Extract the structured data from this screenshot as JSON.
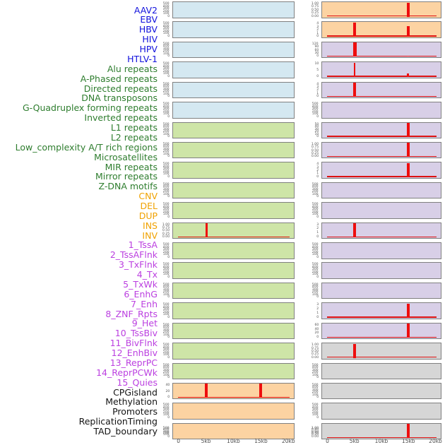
{
  "chart_data": {
    "type": "line",
    "title": "",
    "description": "Genomic feature signal tracks in two columns of 22 panels; red signal spikes near 5kb and 15kb",
    "x_axis": {
      "tick_labels": [
        "0",
        "5kb",
        "10kb",
        "15kb",
        "20kb"
      ],
      "ticks_kb": [
        0,
        5,
        10,
        15,
        20
      ],
      "range_kb": [
        0,
        20
      ]
    },
    "legend_position": "none",
    "grid": false,
    "colors": {
      "track_border": "#808080",
      "spike_red": "#ee0e0e",
      "baseline_red": "#dd1111",
      "axis_text": "#4d4d4d",
      "ytick_text": "#555555"
    },
    "groups": {
      "virus": {
        "label_color": "#1212dd",
        "fill": "#d4e8f1"
      },
      "repeats": {
        "label_color": "#2e7d2e",
        "fill": "#cee5a7"
      },
      "sv": {
        "label_color": "#f0a202",
        "fill": "#fcd3a2"
      },
      "chromatin": {
        "label_color": "#bb3fe0",
        "fill": "#d8cfe7"
      },
      "other": {
        "label_color": "#141414",
        "fill": "#d6d6d6"
      }
    },
    "default_y_ticks": [
      "500",
      "400",
      "300",
      "200",
      "100",
      "0"
    ],
    "tracks": [
      {
        "label": "AAV2",
        "group": "virus",
        "column": "left",
        "y_ticks": [
          "500",
          "400",
          "300",
          "200",
          "100",
          "0"
        ],
        "spikes": [],
        "baseline": false
      },
      {
        "label": "EBV",
        "group": "virus",
        "column": "left",
        "y_ticks": [
          "500",
          "400",
          "300",
          "200",
          "100",
          "0"
        ],
        "spikes": [],
        "baseline": false
      },
      {
        "label": "HBV",
        "group": "virus",
        "column": "left",
        "y_ticks": [
          "500",
          "400",
          "300",
          "200",
          "100",
          "0"
        ],
        "spikes": [],
        "baseline": false
      },
      {
        "label": "HIV",
        "group": "virus",
        "column": "left",
        "y_ticks": [
          "500",
          "400",
          "300",
          "200",
          "100",
          "0"
        ],
        "spikes": [],
        "baseline": false
      },
      {
        "label": "HPV",
        "group": "virus",
        "column": "left",
        "y_ticks": [
          "500",
          "400",
          "300",
          "200",
          "100",
          "0"
        ],
        "spikes": [],
        "baseline": false
      },
      {
        "label": "HTLV-1",
        "group": "virus",
        "column": "left",
        "y_ticks": [
          "500",
          "400",
          "300",
          "200",
          "100",
          "0"
        ],
        "spikes": [],
        "baseline": false
      },
      {
        "label": "Alu repeats",
        "group": "repeats",
        "column": "left",
        "y_ticks": [
          "500",
          "400",
          "300",
          "200",
          "100",
          "0"
        ],
        "spikes": [],
        "baseline": false
      },
      {
        "label": "A-Phased repeats",
        "group": "repeats",
        "column": "left",
        "y_ticks": [
          "500",
          "400",
          "300",
          "200",
          "100",
          "0"
        ],
        "spikes": [],
        "baseline": false
      },
      {
        "label": "Directed repeats",
        "group": "repeats",
        "column": "left",
        "y_ticks": [
          "500",
          "400",
          "300",
          "200",
          "100",
          "0"
        ],
        "spikes": [],
        "baseline": false
      },
      {
        "label": "DNA transposons",
        "group": "repeats",
        "column": "left",
        "y_ticks": [
          "500",
          "400",
          "300",
          "200",
          "100",
          "0"
        ],
        "spikes": [],
        "baseline": false
      },
      {
        "label": "G-Quadruplex forming repeats",
        "group": "repeats",
        "column": "left",
        "y_ticks": [
          "500",
          "400",
          "300",
          "200",
          "100",
          "0"
        ],
        "spikes": [],
        "baseline": false
      },
      {
        "label": "Inverted repeats",
        "group": "repeats",
        "column": "left",
        "y_ticks": [
          "1.00",
          "0.75",
          "0.50",
          "0.25",
          "0.00"
        ],
        "spikes": [
          {
            "kb": 5,
            "h": 1.0,
            "w": 3
          }
        ],
        "baseline": true
      },
      {
        "label": "L1 repeats",
        "group": "repeats",
        "column": "left",
        "y_ticks": [
          "500",
          "400",
          "300",
          "200",
          "100",
          "0"
        ],
        "spikes": [],
        "baseline": false
      },
      {
        "label": "L2 repeats",
        "group": "repeats",
        "column": "left",
        "y_ticks": [
          "500",
          "400",
          "300",
          "200",
          "100",
          "0"
        ],
        "spikes": [],
        "baseline": false
      },
      {
        "label": "Low_complexity A/T rich regions",
        "group": "repeats",
        "column": "left",
        "y_ticks": [
          "500",
          "400",
          "300",
          "200",
          "100",
          "0"
        ],
        "spikes": [],
        "baseline": false
      },
      {
        "label": "Microsatellites",
        "group": "repeats",
        "column": "left",
        "y_ticks": [
          "500",
          "400",
          "300",
          "200",
          "100",
          "0"
        ],
        "spikes": [],
        "baseline": false
      },
      {
        "label": "MIR repeats",
        "group": "repeats",
        "column": "left",
        "y_ticks": [
          "500",
          "400",
          "300",
          "200",
          "100",
          "0"
        ],
        "spikes": [],
        "baseline": false
      },
      {
        "label": "Mirror repeats",
        "group": "repeats",
        "column": "left",
        "y_ticks": [
          "500",
          "400",
          "300",
          "200",
          "100",
          "0"
        ],
        "spikes": [],
        "baseline": false
      },
      {
        "label": "Z-DNA motifs",
        "group": "repeats",
        "column": "left",
        "y_ticks": [
          "500",
          "400",
          "300",
          "200",
          "100",
          "0"
        ],
        "spikes": [],
        "baseline": false
      },
      {
        "label": "CNV",
        "group": "sv",
        "column": "left",
        "y_ticks": [
          "40",
          "20",
          "0"
        ],
        "spikes": [
          {
            "kb": 5,
            "h": 1.0,
            "w": 4
          },
          {
            "kb": 15,
            "h": 1.0,
            "w": 4
          }
        ],
        "baseline": true
      },
      {
        "label": "DEL",
        "group": "sv",
        "column": "left",
        "y_ticks": [
          "500",
          "400",
          "300",
          "200",
          "100",
          "0"
        ],
        "spikes": [],
        "baseline": false
      },
      {
        "label": "DUP",
        "group": "sv",
        "column": "left",
        "y_ticks": [
          "500",
          "400",
          "300",
          "200",
          "100",
          "0"
        ],
        "dense_ticks": true,
        "spikes": [],
        "baseline": false
      },
      {
        "label": "INS",
        "group": "sv",
        "column": "right",
        "y_ticks": [
          "1.00",
          "0.75",
          "0.50",
          "0.25",
          "0.00"
        ],
        "spikes": [
          {
            "kb": 15,
            "h": 1.0,
            "w": 4
          }
        ],
        "baseline": true
      },
      {
        "label": "INV",
        "group": "sv",
        "column": "right",
        "y_ticks": [
          "4",
          "3",
          "2",
          "1",
          "0"
        ],
        "spikes": [
          {
            "kb": 5,
            "h": 1.0,
            "w": 4
          },
          {
            "kb": 15,
            "h": 0.75,
            "w": 4
          }
        ],
        "baseline": true
      },
      {
        "label": "1_TssA",
        "group": "chromatin",
        "column": "right",
        "y_ticks": [
          "120",
          "90",
          "60",
          "30",
          "0"
        ],
        "spikes": [
          {
            "kb": 5,
            "h": 1.0,
            "w": 5
          },
          {
            "kb": 15,
            "h": 0.08,
            "w": 3
          }
        ],
        "baseline": true
      },
      {
        "label": "2_TssAFlnk",
        "group": "chromatin",
        "column": "right",
        "y_ticks": [
          "10",
          "5",
          "0"
        ],
        "spikes": [
          {
            "kb": 5,
            "h": 1.0,
            "w": 2
          },
          {
            "kb": 15,
            "h": 0.22,
            "w": 3
          }
        ],
        "baseline": true
      },
      {
        "label": "3_TxFlnk",
        "group": "chromatin",
        "column": "right",
        "y_ticks": [
          "4",
          "3",
          "2",
          "1",
          "0"
        ],
        "spikes": [
          {
            "kb": 5,
            "h": 1.0,
            "w": 4
          }
        ],
        "baseline": true
      },
      {
        "label": "4_Tx",
        "group": "chromatin",
        "column": "right",
        "y_ticks": [
          "500",
          "400",
          "300",
          "200",
          "100",
          "0"
        ],
        "spikes": [],
        "baseline": false
      },
      {
        "label": "5_TxWk",
        "group": "chromatin",
        "column": "right",
        "y_ticks": [
          "50",
          "40",
          "30",
          "20",
          "10",
          "0"
        ],
        "spikes": [
          {
            "kb": 15,
            "h": 1.0,
            "w": 4
          }
        ],
        "baseline": true
      },
      {
        "label": "6_EnhG",
        "group": "chromatin",
        "column": "right",
        "y_ticks": [
          "1.00",
          "0.75",
          "0.50",
          "0.25",
          "0.00"
        ],
        "spikes": [
          {
            "kb": 15,
            "h": 1.0,
            "w": 4
          }
        ],
        "baseline": true
      },
      {
        "label": "7_Enh",
        "group": "chromatin",
        "column": "right",
        "y_ticks": [
          "4",
          "3",
          "2",
          "1",
          "0"
        ],
        "spikes": [
          {
            "kb": 15,
            "h": 1.0,
            "w": 4
          }
        ],
        "baseline": true
      },
      {
        "label": "8_ZNF_Rpts",
        "group": "chromatin",
        "column": "right",
        "y_ticks": [
          "500",
          "400",
          "300",
          "200",
          "100",
          "0"
        ],
        "spikes": [],
        "baseline": false
      },
      {
        "label": "9_Het",
        "group": "chromatin",
        "column": "right",
        "y_ticks": [
          "500",
          "400",
          "300",
          "200",
          "100",
          "0"
        ],
        "spikes": [],
        "baseline": false
      },
      {
        "label": "10_TssBiv",
        "group": "chromatin",
        "column": "right",
        "y_ticks": [
          "3",
          "2",
          "1",
          "0"
        ],
        "spikes": [
          {
            "kb": 5,
            "h": 1.0,
            "w": 4
          }
        ],
        "baseline": true
      },
      {
        "label": "11_BivFlnk",
        "group": "chromatin",
        "column": "right",
        "y_ticks": [
          "500",
          "400",
          "300",
          "200",
          "100",
          "0"
        ],
        "spikes": [],
        "baseline": false
      },
      {
        "label": "12_EnhBiv",
        "group": "chromatin",
        "column": "right",
        "y_ticks": [
          "500",
          "400",
          "300",
          "200",
          "100",
          "0"
        ],
        "spikes": [],
        "baseline": false
      },
      {
        "label": "13_ReprPC",
        "group": "chromatin",
        "column": "right",
        "y_ticks": [
          "500",
          "400",
          "300",
          "200",
          "100",
          "0"
        ],
        "spikes": [],
        "baseline": false
      },
      {
        "label": "14_ReprPCWk",
        "group": "chromatin",
        "column": "right",
        "y_ticks": [
          "3",
          "2",
          "1",
          "0"
        ],
        "spikes": [
          {
            "kb": 15,
            "h": 1.0,
            "w": 4
          }
        ],
        "baseline": true
      },
      {
        "label": "15_Quies",
        "group": "chromatin",
        "column": "right",
        "y_ticks": [
          "60",
          "40",
          "20",
          "0"
        ],
        "spikes": [
          {
            "kb": 15,
            "h": 1.0,
            "w": 4
          }
        ],
        "baseline": true
      },
      {
        "label": "CPGisland",
        "group": "other",
        "column": "right",
        "y_ticks": [
          "1.00",
          "0.75",
          "0.50",
          "0.25",
          "0.00"
        ],
        "spikes": [
          {
            "kb": 5,
            "h": 1.0,
            "w": 4
          }
        ],
        "baseline": true
      },
      {
        "label": "Methylation",
        "group": "other",
        "column": "right",
        "y_ticks": [
          "500",
          "400",
          "300",
          "200",
          "100",
          "0"
        ],
        "spikes": [],
        "baseline": false
      },
      {
        "label": "Promoters",
        "group": "other",
        "column": "right",
        "y_ticks": [
          "500",
          "400",
          "300",
          "200",
          "100",
          "0"
        ],
        "spikes": [],
        "baseline": false
      },
      {
        "label": "ReplicationTiming",
        "group": "other",
        "column": "right",
        "y_ticks": [
          "500",
          "400",
          "300",
          "200",
          "100",
          "0"
        ],
        "spikes": [],
        "baseline": false
      },
      {
        "label": "TAD_boundary",
        "group": "other",
        "column": "right",
        "y_ticks": [
          "1.00",
          "0.80",
          "0.60",
          "0.40",
          "0.20",
          "0.00"
        ],
        "dense_ticks": true,
        "spikes": [
          {
            "kb": 15,
            "h": 1.0,
            "w": 4
          }
        ],
        "baseline": true
      }
    ]
  }
}
